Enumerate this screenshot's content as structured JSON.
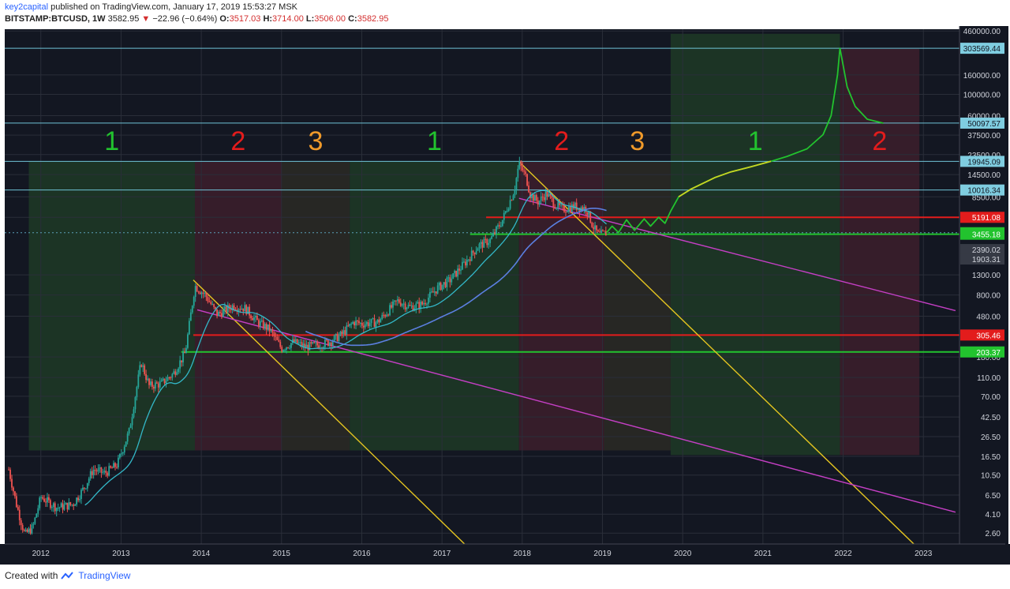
{
  "header": {
    "author": "key2capital",
    "published_text": "published on TradingView.com, January 17, 2019 15:53:27 MSK",
    "symbol": "BITSTAMP:BTCUSD, 1W",
    "last": "3582.95",
    "change": "−22.96 (−0.64%)",
    "o_label": "O:",
    "o_value": "3517.03",
    "h_label": "H:",
    "h_value": "3714.00",
    "l_label": "L:",
    "l_value": "3506.00",
    "c_label": "C:",
    "c_value": "3582.95"
  },
  "footer": {
    "created_with": "Created with",
    "brand": "TradingView"
  },
  "colors": {
    "background": "#131722",
    "grid": "#2a2e39",
    "axis_text": "#d1d4dc",
    "up": "#26a69a",
    "down": "#ef5350",
    "zone1": "#1e3a26",
    "zone2": "#3d1f2b",
    "zone3": "#2c2a24",
    "label1": "#22c32e",
    "label2": "#e31c1c",
    "label3": "#f09a2a",
    "trend_yellow": "#e5c520",
    "trend_magenta": "#c43fc4",
    "ma_cyan": "#33b8c8",
    "ma_blue": "#5b7fe0",
    "level_cyan": "#6fc3d6",
    "level_red": "#e31c1c",
    "level_green": "#22c32e",
    "projection": "#22c32e",
    "projection_yellow": "#c9d422"
  },
  "chart_data": {
    "type": "candlestick",
    "scale": "log",
    "y_ticks": [
      "460000.00",
      "160000.00",
      "100000.00",
      "60000.00",
      "37500.00",
      "23500.00",
      "14500.00",
      "8500.00",
      "5191.08",
      "1300.00",
      "800.00",
      "480.00",
      "180.00",
      "110.00",
      "70.00",
      "42.50",
      "26.50",
      "16.50",
      "10.50",
      "6.50",
      "4.10",
      "2.60"
    ],
    "x_ticks": [
      "2012",
      "2013",
      "2014",
      "2015",
      "2016",
      "2017",
      "2018",
      "2019",
      "2020",
      "2021",
      "2022",
      "2023"
    ],
    "price_labels": [
      {
        "text": "303569.44",
        "value": 303569.44,
        "kind": "cyan"
      },
      {
        "text": "50097.57",
        "value": 50097.57,
        "kind": "cyan"
      },
      {
        "text": "19945.09",
        "value": 19945.09,
        "kind": "cyan"
      },
      {
        "text": "10016.34",
        "value": 10016.34,
        "kind": "cyan"
      },
      {
        "text": "5191.08",
        "value": 5191.08,
        "kind": "red"
      },
      {
        "text": "3582.95",
        "value": 3582.95,
        "kind": "green"
      },
      {
        "text": "3455.18",
        "value": 3455.18,
        "kind": "green"
      },
      {
        "text": "2390.02",
        "value": 2390.02,
        "kind": "gray"
      },
      {
        "text": "1903.31",
        "value": 1903.31,
        "kind": "gray"
      },
      {
        "text": "305.46",
        "value": 305.46,
        "kind": "red"
      },
      {
        "text": "203.37",
        "value": 203.37,
        "kind": "green"
      }
    ],
    "cycle_zones": [
      {
        "label": "1",
        "phase": 1,
        "x0": 2011.85,
        "x1": 2013.92
      },
      {
        "label": "2",
        "phase": 2,
        "x0": 2013.92,
        "x1": 2015.0
      },
      {
        "label": "3",
        "phase": 3,
        "x0": 2015.0,
        "x1": 2015.85
      },
      {
        "label": "1",
        "phase": 1,
        "x0": 2015.85,
        "x1": 2017.96
      },
      {
        "label": "2",
        "phase": 2,
        "x0": 2017.96,
        "x1": 2019.02
      },
      {
        "label": "3",
        "phase": 3,
        "x0": 2019.02,
        "x1": 2019.85
      },
      {
        "label": "1",
        "phase": 1,
        "x0": 2019.85,
        "x1": 2021.96
      },
      {
        "label": "2",
        "phase": 2,
        "x0": 2021.96,
        "x1": 2022.95
      }
    ],
    "horizontal_levels": [
      {
        "value": 303569.44,
        "kind": "cyan"
      },
      {
        "value": 50097.57,
        "kind": "cyan"
      },
      {
        "value": 19945.09,
        "kind": "cyan"
      },
      {
        "value": 10016.34,
        "kind": "cyan"
      },
      {
        "value": 5191.08,
        "kind": "red",
        "x0": 2017.55
      },
      {
        "value": 3455.18,
        "kind": "green",
        "x0": 2017.35
      },
      {
        "value": 305.46,
        "kind": "red",
        "x0": 2013.9
      },
      {
        "value": 203.37,
        "kind": "green",
        "x0": 2013.75
      }
    ],
    "trendlines": [
      {
        "kind": "yellow",
        "points": [
          [
            2013.9,
            1150
          ],
          [
            2017.4,
            1.6
          ]
        ]
      },
      {
        "kind": "yellow",
        "points": [
          [
            2017.96,
            19800
          ],
          [
            2023.0,
            1.6
          ]
        ]
      },
      {
        "kind": "magenta",
        "points": [
          [
            2013.95,
            560
          ],
          [
            2023.4,
            4.3
          ]
        ]
      },
      {
        "kind": "magenta",
        "points": [
          [
            2017.96,
            8200
          ],
          [
            2023.4,
            550
          ]
        ]
      }
    ],
    "price_series": [
      [
        2011.6,
        12
      ],
      [
        2011.7,
        5
      ],
      [
        2011.8,
        2.5
      ],
      [
        2011.9,
        3.0
      ],
      [
        2012.0,
        6.2
      ],
      [
        2012.2,
        4.8
      ],
      [
        2012.4,
        5.2
      ],
      [
        2012.55,
        8
      ],
      [
        2012.65,
        12
      ],
      [
        2012.8,
        11
      ],
      [
        2012.95,
        13.5
      ],
      [
        2013.1,
        30
      ],
      [
        2013.25,
        160
      ],
      [
        2013.35,
        90
      ],
      [
        2013.5,
        95
      ],
      [
        2013.65,
        120
      ],
      [
        2013.8,
        200
      ],
      [
        2013.92,
        1000
      ],
      [
        2014.05,
        800
      ],
      [
        2014.2,
        500
      ],
      [
        2014.4,
        620
      ],
      [
        2014.55,
        580
      ],
      [
        2014.7,
        420
      ],
      [
        2014.85,
        350
      ],
      [
        2015.0,
        220
      ],
      [
        2015.15,
        260
      ],
      [
        2015.3,
        230
      ],
      [
        2015.45,
        240
      ],
      [
        2015.6,
        260
      ],
      [
        2015.75,
        310
      ],
      [
        2015.9,
        420
      ],
      [
        2016.0,
        400
      ],
      [
        2016.2,
        420
      ],
      [
        2016.45,
        700
      ],
      [
        2016.6,
        600
      ],
      [
        2016.75,
        640
      ],
      [
        2016.95,
        960
      ],
      [
        2017.1,
        1150
      ],
      [
        2017.3,
        1800
      ],
      [
        2017.45,
        2600
      ],
      [
        2017.6,
        3000
      ],
      [
        2017.75,
        4800
      ],
      [
        2017.9,
        10000
      ],
      [
        2017.96,
        19000
      ],
      [
        2018.05,
        13500
      ],
      [
        2018.1,
        9000
      ],
      [
        2018.2,
        7500
      ],
      [
        2018.3,
        9300
      ],
      [
        2018.4,
        7200
      ],
      [
        2018.5,
        6300
      ],
      [
        2018.65,
        6800
      ],
      [
        2018.8,
        6400
      ],
      [
        2018.88,
        4200
      ],
      [
        2018.95,
        3400
      ],
      [
        2019.05,
        3580
      ]
    ],
    "projection": [
      [
        2019.05,
        3582
      ],
      [
        2019.12,
        4200
      ],
      [
        2019.2,
        3600
      ],
      [
        2019.3,
        4900
      ],
      [
        2019.4,
        3800
      ],
      [
        2019.52,
        5000
      ],
      [
        2019.6,
        4200
      ],
      [
        2019.7,
        5200
      ],
      [
        2019.78,
        4500
      ],
      [
        2019.85,
        6000
      ],
      [
        2019.95,
        8500
      ],
      [
        2020.1,
        10200
      ],
      [
        2020.4,
        13500
      ],
      [
        2020.6,
        15500
      ],
      [
        2020.85,
        17500
      ],
      [
        2021.1,
        20000
      ],
      [
        2021.3,
        22500
      ],
      [
        2021.55,
        27000
      ],
      [
        2021.75,
        38000
      ],
      [
        2021.85,
        60000
      ],
      [
        2021.93,
        160000
      ],
      [
        2021.96,
        303569
      ],
      [
        2022.05,
        120000
      ],
      [
        2022.15,
        75000
      ],
      [
        2022.3,
        55000
      ],
      [
        2022.5,
        50000
      ]
    ]
  }
}
